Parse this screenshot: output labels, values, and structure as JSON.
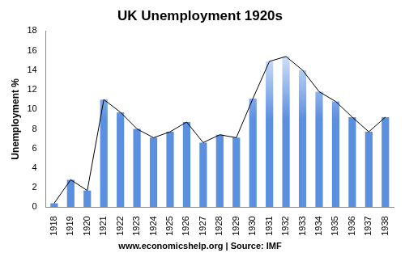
{
  "chart_data": {
    "type": "bar",
    "title": "UK Unemployment 1920s",
    "y_label": "Unemployment %",
    "annotation": "www.economicshelp.org | Source: IMF",
    "categories": [
      "1918",
      "1919",
      "1920",
      "1921",
      "1922",
      "1923",
      "1924",
      "1925",
      "1926",
      "1927",
      "1928",
      "1929",
      "1930",
      "1931",
      "1932",
      "1933",
      "1934",
      "1935",
      "1936",
      "1937",
      "1938"
    ],
    "series": [
      {
        "type": "bar",
        "color": "#5b8fe0",
        "values": [
          0.4,
          2.8,
          1.7,
          11.0,
          9.7,
          8.0,
          7.1,
          7.7,
          8.7,
          6.6,
          7.4,
          7.1,
          11.1,
          14.9,
          15.4,
          14.0,
          11.8,
          10.8,
          9.2,
          7.7,
          9.2
        ]
      },
      {
        "type": "line",
        "color": "#000000",
        "values": [
          0.4,
          2.8,
          1.7,
          11.0,
          9.7,
          8.0,
          7.1,
          7.7,
          8.7,
          6.6,
          7.4,
          7.1,
          11.1,
          14.9,
          15.4,
          14.0,
          11.8,
          10.8,
          9.2,
          7.7,
          9.2
        ]
      }
    ],
    "ylim": [
      0,
      18
    ],
    "yticks": [
      0,
      2,
      4,
      6,
      8,
      10,
      12,
      14,
      16,
      18
    ],
    "grid": false
  }
}
